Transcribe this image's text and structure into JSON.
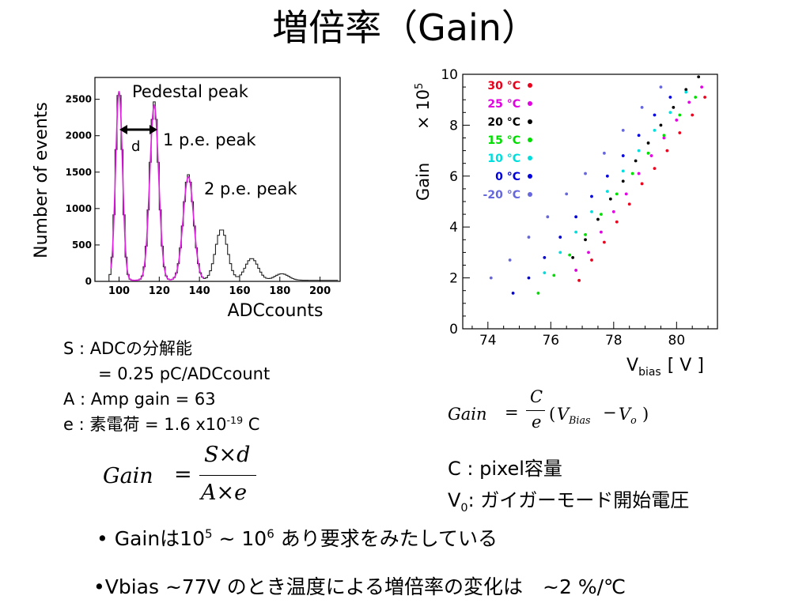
{
  "title": "増倍率（Gain）",
  "histogram": {
    "ylabel": "Number of events",
    "xlabel": "ADCcounts",
    "yticks": [
      "0",
      "500",
      "1000",
      "1500",
      "2000",
      "2500"
    ],
    "xticks": [
      "100",
      "120",
      "140",
      "160",
      "180",
      "200"
    ],
    "annotations": {
      "pedestal": "Pedestal peak",
      "pe1": "1 p.e. peak",
      "pe2": "2 p.e. peak",
      "d": "d"
    }
  },
  "chart_data": {
    "type": "scatter",
    "xlabel": "V",
    "xlabel_sub": "bias",
    "xunit": "[ V ]",
    "ylabel": "Gain",
    "yscale_label": "× 10",
    "yscale_exp": "5",
    "xlim": [
      73.2,
      81.3
    ],
    "ylim": [
      0,
      10
    ],
    "xticks": [
      "74",
      "76",
      "78",
      "80"
    ],
    "yticks": [
      "0",
      "2",
      "4",
      "6",
      "8",
      "10"
    ],
    "series": [
      {
        "name": "30 °C",
        "color": "#e8001c",
        "x": [
          76.9,
          77.3,
          77.7,
          78.1,
          78.5,
          78.9,
          79.3,
          79.7,
          80.1,
          80.5,
          80.9
        ],
        "y": [
          1.9,
          2.7,
          3.4,
          4.2,
          4.9,
          5.7,
          6.3,
          7.0,
          7.7,
          8.4,
          9.1
        ]
      },
      {
        "name": "25 °C",
        "color": "#e000e0",
        "x": [
          76.8,
          77.2,
          77.6,
          78.0,
          78.4,
          78.8,
          79.2,
          79.6,
          80.0,
          80.4,
          80.8
        ],
        "y": [
          2.3,
          3.0,
          3.8,
          4.6,
          5.3,
          6.1,
          6.8,
          7.5,
          8.2,
          8.9,
          9.5
        ]
      },
      {
        "name": "20 °C",
        "color": "#000000",
        "x": [
          76.7,
          77.1,
          77.5,
          77.9,
          78.3,
          78.7,
          79.1,
          79.5,
          79.9,
          80.3,
          80.7
        ],
        "y": [
          2.8,
          3.5,
          4.3,
          5.1,
          5.8,
          6.6,
          7.3,
          8.0,
          8.7,
          9.4,
          9.9
        ]
      },
      {
        "name": "15 °C",
        "color": "#00dd00",
        "x": [
          75.6,
          76.1,
          76.6,
          77.1,
          77.6,
          78.1,
          78.6,
          79.1,
          79.6,
          80.1,
          80.6
        ],
        "y": [
          1.4,
          2.1,
          2.9,
          3.7,
          4.5,
          5.3,
          6.1,
          6.9,
          7.6,
          8.4,
          9.1
        ]
      },
      {
        "name": "10 °C",
        "color": "#00dddd",
        "x": [
          75.8,
          76.3,
          76.8,
          77.3,
          77.8,
          78.3,
          78.8,
          79.3,
          79.8,
          80.3
        ],
        "y": [
          2.2,
          3.0,
          3.8,
          4.6,
          5.4,
          6.2,
          7.0,
          7.8,
          8.5,
          9.3
        ]
      },
      {
        "name": "0 °C",
        "color": "#0000dd",
        "x": [
          74.8,
          75.3,
          75.8,
          76.3,
          76.8,
          77.3,
          77.8,
          78.3,
          78.8,
          79.3,
          79.8
        ],
        "y": [
          1.4,
          2.0,
          2.8,
          3.6,
          4.4,
          5.2,
          6.0,
          6.8,
          7.6,
          8.4,
          9.1
        ]
      },
      {
        "name": "-20 °C",
        "color": "#6666dd",
        "x": [
          74.1,
          74.7,
          75.3,
          75.9,
          76.5,
          77.1,
          77.7,
          78.3,
          78.9,
          79.5
        ],
        "y": [
          2.0,
          2.7,
          3.6,
          4.4,
          5.3,
          6.1,
          6.9,
          7.8,
          8.7,
          9.5
        ]
      }
    ]
  },
  "formula_right": {
    "lhs": "Gain",
    "eq": "=",
    "num": "C",
    "den": "e",
    "open": "(",
    "v1": "V",
    "v1sub": "Bias",
    "minus": "−",
    "v2": "V",
    "v2sub": "o",
    "close": ")"
  },
  "formula_left": {
    "lhs": "Gain",
    "eq": "=",
    "num": "S×d",
    "den": "A×e"
  },
  "info": {
    "s_line1": "S : ADCの分解能",
    "s_line2": "= 0.25 pC/ADCcount",
    "a_line": "A : Amp gain = 63",
    "e_prefix": "e : 素電荷 = 1.6 x10",
    "e_exp": "-19",
    "e_unit": " C"
  },
  "c_desc": {
    "c_line": "C : pixel容量",
    "v0_main": "V",
    "v0_sub": "0",
    "v0_text": ": ガイガーモード開始電圧"
  },
  "bullets": {
    "b1_pre": "• Gainは10",
    "b1_exp1": "5",
    "b1_mid": " ~ 10",
    "b1_exp2": "6",
    "b1_post": " あり要求をみたしている",
    "b2": "•Vbias ~77V のとき温度による増倍率の変化は　~2 %/℃"
  }
}
